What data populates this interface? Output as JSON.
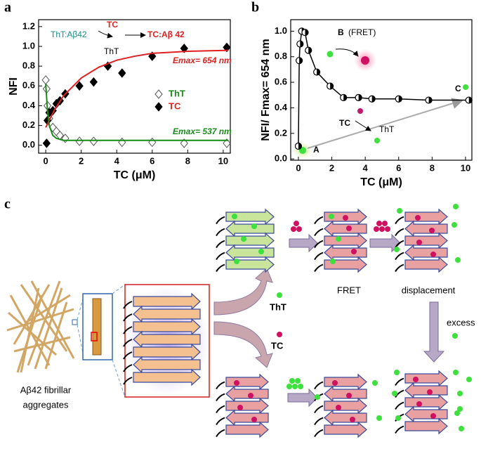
{
  "panels": [
    "a",
    "b",
    "c"
  ],
  "chart_data": [
    {
      "type": "scatter",
      "xlabel": "TC (μM)",
      "ylabel": "NFI",
      "xlim": [
        -0.4,
        10.4
      ],
      "ylim": [
        -0.08,
        1.27
      ],
      "xticks": [
        0,
        2,
        4,
        6,
        8,
        10
      ],
      "yticks": [
        {
          "value": 0,
          "label": "0.0"
        },
        {
          "value": 0.2,
          "label": "0.2"
        },
        {
          "value": 0.4,
          "label": "0.4"
        },
        {
          "value": 0.6,
          "label": "0.6"
        },
        {
          "value": 0.8,
          "label": "0.8"
        },
        {
          "value": 1,
          "label": "1.0"
        },
        {
          "value": 1.2,
          "label": "1.2"
        }
      ],
      "series": [
        {
          "name": "ThT",
          "color": "#555555",
          "marker": "open-diamond",
          "x": [
            0,
            0.05,
            0.1,
            0.2,
            0.4,
            0.6,
            0.8,
            1.1,
            1.9,
            2.7,
            4.3,
            6,
            7.8,
            10.2
          ],
          "values": [
            0.66,
            0.57,
            0.4,
            0.27,
            0.18,
            0.14,
            0.1,
            0.07,
            0.04,
            0.04,
            0.03,
            0.03,
            0.02,
            0.02
          ]
        },
        {
          "name": "TC",
          "color": "#000000",
          "marker": "diamond",
          "x": [
            0.05,
            0.1,
            0.2,
            0.4,
            0.6,
            0.8,
            1.1,
            1.9,
            2.7,
            3.5,
            4.3,
            6,
            7.8,
            10.2
          ],
          "values": [
            0.02,
            0.25,
            0.33,
            0.35,
            0.42,
            0.45,
            0.52,
            0.6,
            0.64,
            0.8,
            0.73,
            0.9,
            0.98,
            0.99
          ]
        },
        {
          "color": "#e02020",
          "marker": "line",
          "x": [
            0,
            0.5,
            1,
            2,
            3,
            4,
            5,
            6,
            8,
            10.3
          ],
          "values": [
            0.18,
            0.36,
            0.5,
            0.68,
            0.79,
            0.86,
            0.9,
            0.93,
            0.95,
            0.96
          ]
        },
        {
          "color": "#1a8a1a",
          "marker": "line",
          "x": [
            0,
            0.1,
            0.2,
            0.4,
            0.6,
            1,
            2,
            4,
            6,
            10.3
          ],
          "values": [
            0.62,
            0.35,
            0.2,
            0.1,
            0.07,
            0.05,
            0.05,
            0.05,
            0.05,
            0.05
          ]
        }
      ],
      "annotations": [
        "ThT:Aβ42",
        "TC",
        "ThT",
        "TC:Aβ 42",
        "Emax= 654 nm",
        "Emax= 537 nm"
      ]
    },
    {
      "type": "line",
      "xlabel": "TC (μM)",
      "ylabel": "NFI/ Fmax= 654 nm",
      "xlim": [
        -0.46,
        10.38
      ],
      "ylim": [
        -0.01,
        1.09
      ],
      "xticks": [
        0,
        2,
        4,
        6,
        8,
        10
      ],
      "yticks": [
        {
          "value": 0,
          "label": "0.0"
        },
        {
          "value": 0.2,
          "label": "0.2"
        },
        {
          "value": 0.4,
          "label": "0.4"
        },
        {
          "value": 0.6,
          "label": "0.6"
        },
        {
          "value": 0.8,
          "label": "0.8"
        },
        {
          "value": 1,
          "label": "1.0"
        }
      ],
      "series": [
        {
          "color": "#000000",
          "marker": "half-circle",
          "x": [
            0,
            0.05,
            0.1,
            0.2,
            0.4,
            0.6,
            1.1,
            1.9,
            2.7,
            3.6,
            4.4,
            6,
            7.8,
            10.2
          ],
          "values": [
            0.1,
            0.77,
            0.9,
            1.0,
            0.99,
            0.85,
            0.68,
            0.57,
            0.48,
            0.48,
            0.47,
            0.47,
            0.46,
            0.46
          ]
        }
      ],
      "annotations": [
        "B",
        "(FRET)",
        "TC",
        "ThT",
        "A",
        "C"
      ]
    }
  ],
  "diagram_labels": [
    "ThT",
    "TC",
    "FRET",
    "displacement",
    "excess",
    "Aβ42 fibrillar",
    "aggregates"
  ]
}
